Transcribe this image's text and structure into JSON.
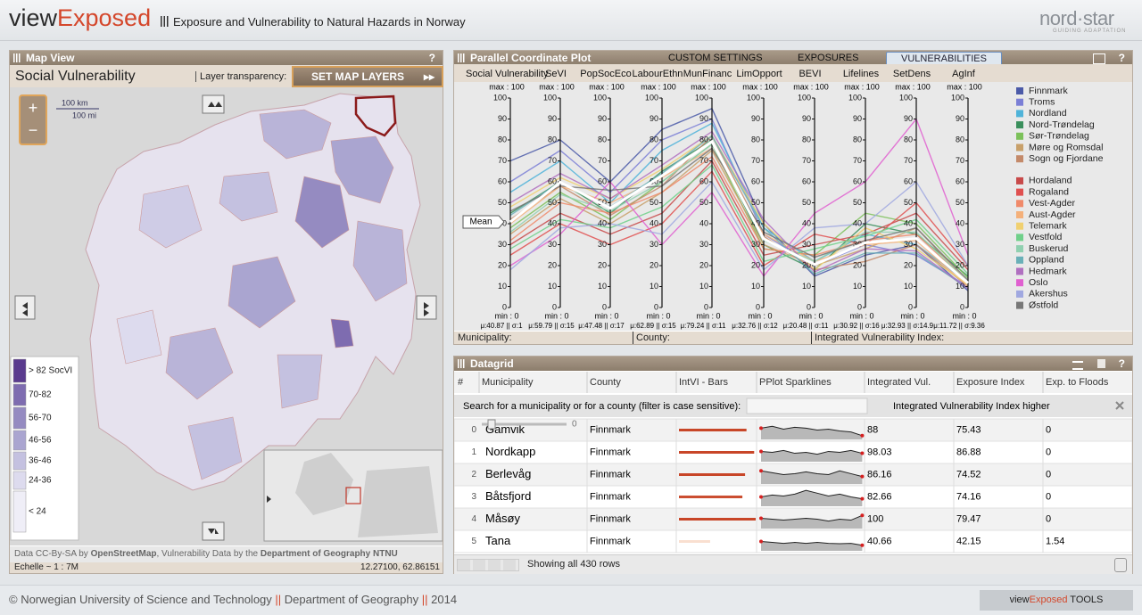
{
  "header": {
    "brand_view": "view",
    "brand_exposed": "Exposed",
    "subtitle": "Exposure and Vulnerability to Natural Hazards in Norway",
    "logo": "nord·star",
    "logo_tagline": "GUIDING ADAPTATION"
  },
  "map_view": {
    "title": "Map View",
    "help": "?",
    "layer_title": "Social Vulnerability",
    "transparency_label": "Layer transparency:",
    "set_layers_button": "SET MAP LAYERS",
    "scale_km": "100 km",
    "scale_mi": "100 mi",
    "zoom_in": "+",
    "zoom_out": "−",
    "legend": [
      {
        "label": "> 82 SocVI",
        "color": "#5a3b8e"
      },
      {
        "label": "70-82",
        "color": "#7e6cb0"
      },
      {
        "label": "56-70",
        "color": "#958bc1"
      },
      {
        "label": "46-56",
        "color": "#aaa5d0"
      },
      {
        "label": "36-46",
        "color": "#c4c1e0"
      },
      {
        "label": "24-36",
        "color": "#dddbee"
      },
      {
        "label": "< 24",
        "color": "#efeef7"
      }
    ],
    "attribution": {
      "prefix": "Data CC-By-SA by",
      "osm": "OpenStreetMap",
      "middle": ", Vulnerability Data by the",
      "dept": "Department of Geography NTNU"
    },
    "scale": "Echelle ~ 1 : 7M",
    "coordinates": "12.27100, 62.86151"
  },
  "parallel_panel": {
    "tabs": [
      "CUSTOM SETTINGS",
      "EXPOSURES",
      "VULNERABILITIES"
    ],
    "active_tab": 2,
    "help": "?",
    "footer": {
      "municipality": "Municipality:",
      "county": "County:",
      "index": "Integrated Vulnerability Index:"
    }
  },
  "chart_data": {
    "type": "parallel",
    "title": "Parallel Coordinate Plot",
    "axes": [
      "Social Vulnerability",
      "SeVI",
      "PopSocEco",
      "LabourEthn",
      "MunFinanc",
      "LimOpport",
      "BEVI",
      "Lifelines",
      "SetDens",
      "AgInf"
    ],
    "max_label": "max : 100",
    "min_label": "min : 0",
    "ylim": [
      0,
      100
    ],
    "yticks": [
      0,
      10,
      20,
      30,
      40,
      50,
      60,
      70,
      80,
      90,
      100
    ],
    "axis_stats": [
      "μ:40.87 || σ:1",
      "μ:59.79 || σ:15",
      "μ:47.48 || σ:17",
      "μ:62.89 || σ:15",
      "μ:79.24 || σ:11",
      "μ:32.76 || σ:12",
      "μ:20.48 || σ:11",
      "μ:30.92 || σ:16",
      "μ:32.93 || σ:14.9",
      "μ:11.72 || σ:9.36"
    ],
    "mean": {
      "name": "Mean",
      "color": "#ffffff",
      "values": [
        40.87,
        59.79,
        47.48,
        62.89,
        79.24,
        32.76,
        20.48,
        30.92,
        32.93,
        11.72
      ]
    },
    "series": [
      {
        "name": "Finnmark",
        "color": "#4b5aa8",
        "values": [
          70,
          80,
          60,
          85,
          95,
          40,
          15,
          25,
          30,
          8
        ]
      },
      {
        "name": "Troms",
        "color": "#7b7fd6",
        "values": [
          60,
          75,
          55,
          80,
          90,
          35,
          20,
          30,
          25,
          10
        ]
      },
      {
        "name": "Nordland",
        "color": "#4fb3d9",
        "values": [
          55,
          70,
          50,
          75,
          88,
          38,
          22,
          35,
          30,
          12
        ]
      },
      {
        "name": "Nord-Trøndelag",
        "color": "#3a8f5c",
        "values": [
          45,
          60,
          45,
          65,
          80,
          30,
          18,
          40,
          35,
          15
        ]
      },
      {
        "name": "Sør-Trøndelag",
        "color": "#7cc15a",
        "values": [
          38,
          55,
          42,
          60,
          78,
          28,
          25,
          45,
          40,
          14
        ]
      },
      {
        "name": "Møre og Romsdal",
        "color": "#c8a06a",
        "values": [
          35,
          52,
          40,
          55,
          75,
          30,
          20,
          28,
          38,
          12
        ]
      },
      {
        "name": "Sogn og Fjordane",
        "color": "#c48a6a",
        "values": [
          42,
          58,
          44,
          58,
          82,
          34,
          18,
          22,
          30,
          10
        ]
      },
      {
        "name": "Hordaland",
        "color": "#c84a4a",
        "values": [
          30,
          45,
          35,
          45,
          70,
          25,
          30,
          35,
          45,
          18
        ]
      },
      {
        "name": "Rogaland",
        "color": "#e05050",
        "values": [
          25,
          40,
          30,
          40,
          65,
          20,
          35,
          30,
          50,
          20
        ]
      },
      {
        "name": "Vest-Agder",
        "color": "#f08a6a",
        "values": [
          32,
          50,
          45,
          55,
          72,
          28,
          25,
          32,
          35,
          12
        ]
      },
      {
        "name": "Aust-Agder",
        "color": "#f4b07a",
        "values": [
          40,
          58,
          50,
          62,
          76,
          35,
          22,
          30,
          32,
          10
        ]
      },
      {
        "name": "Telemark",
        "color": "#f0d070",
        "values": [
          48,
          62,
          52,
          66,
          82,
          40,
          18,
          38,
          28,
          11
        ]
      },
      {
        "name": "Vestfold",
        "color": "#70d08a",
        "values": [
          28,
          42,
          38,
          48,
          68,
          22,
          28,
          34,
          42,
          16
        ]
      },
      {
        "name": "Buskerud",
        "color": "#90d0b0",
        "values": [
          36,
          54,
          46,
          60,
          78,
          32,
          22,
          36,
          36,
          12
        ]
      },
      {
        "name": "Oppland",
        "color": "#6ab0b8",
        "values": [
          44,
          60,
          48,
          64,
          82,
          38,
          16,
          26,
          26,
          9
        ]
      },
      {
        "name": "Hedmark",
        "color": "#b070c0",
        "values": [
          50,
          64,
          52,
          68,
          84,
          42,
          17,
          28,
          27,
          9
        ]
      },
      {
        "name": "Oslo",
        "color": "#e060d0",
        "values": [
          20,
          35,
          60,
          30,
          55,
          15,
          45,
          60,
          90,
          25
        ]
      },
      {
        "name": "Akershus",
        "color": "#a0a8e0",
        "values": [
          18,
          38,
          40,
          35,
          60,
          18,
          38,
          40,
          60,
          20
        ]
      },
      {
        "name": "Østfold",
        "color": "#777777",
        "values": [
          46,
          58,
          56,
          58,
          76,
          36,
          24,
          32,
          38,
          13
        ]
      }
    ]
  },
  "datagrid": {
    "title": "Datagrid",
    "help": "?",
    "columns": [
      "#",
      "Municipality",
      "County",
      "IntVI - Bars",
      "PPlot Sparklines",
      "Integrated Vul.",
      "Exposure Index",
      "Exp. to Floods"
    ],
    "search_label": "Search for a municipality or for a county (filter is case sensitive):",
    "filter_label": "Integrated Vulnerability Index higher",
    "slider_value": 0,
    "rows": [
      {
        "index": 0,
        "municipality": "Gamvik",
        "county": "Finnmark",
        "sparkline": [
          60,
          70,
          55,
          65,
          60,
          50,
          55,
          45,
          40,
          20
        ],
        "integrated": 88,
        "exposure": 75.43,
        "floods": 0
      },
      {
        "index": 1,
        "municipality": "Nordkapp",
        "county": "Finnmark",
        "sparkline": [
          55,
          50,
          60,
          45,
          50,
          40,
          55,
          50,
          60,
          45
        ],
        "integrated": 98.03,
        "exposure": 86.88,
        "floods": 0
      },
      {
        "index": 2,
        "municipality": "Berlevåg",
        "county": "Finnmark",
        "sparkline": [
          70,
          60,
          50,
          55,
          65,
          55,
          50,
          70,
          55,
          40
        ],
        "integrated": 86.16,
        "exposure": 74.52,
        "floods": 0
      },
      {
        "index": 3,
        "municipality": "Båtsfjord",
        "county": "Finnmark",
        "sparkline": [
          50,
          60,
          55,
          65,
          85,
          70,
          55,
          65,
          50,
          40
        ],
        "integrated": 82.66,
        "exposure": 74.16,
        "floods": 0
      },
      {
        "index": 4,
        "municipality": "Måsøy",
        "county": "Finnmark",
        "sparkline": [
          55,
          50,
          45,
          50,
          55,
          50,
          40,
          50,
          45,
          70
        ],
        "integrated": 100,
        "exposure": 79.47,
        "floods": 0
      },
      {
        "index": 5,
        "municipality": "Tana",
        "county": "Finnmark",
        "sparkline": [
          50,
          45,
          40,
          45,
          40,
          45,
          40,
          38,
          40,
          30
        ],
        "integrated": 40.66,
        "exposure": 42.15,
        "floods": 1.54
      }
    ],
    "status": "Showing all 430 rows"
  },
  "footer": {
    "copyright": "© Norwegian University of Science and Technology",
    "separator": "||",
    "department": "Department of Geography",
    "year": "2014",
    "tools_view": "view",
    "tools_exposed": "Exposed",
    "tools_label": "TOOLS"
  }
}
